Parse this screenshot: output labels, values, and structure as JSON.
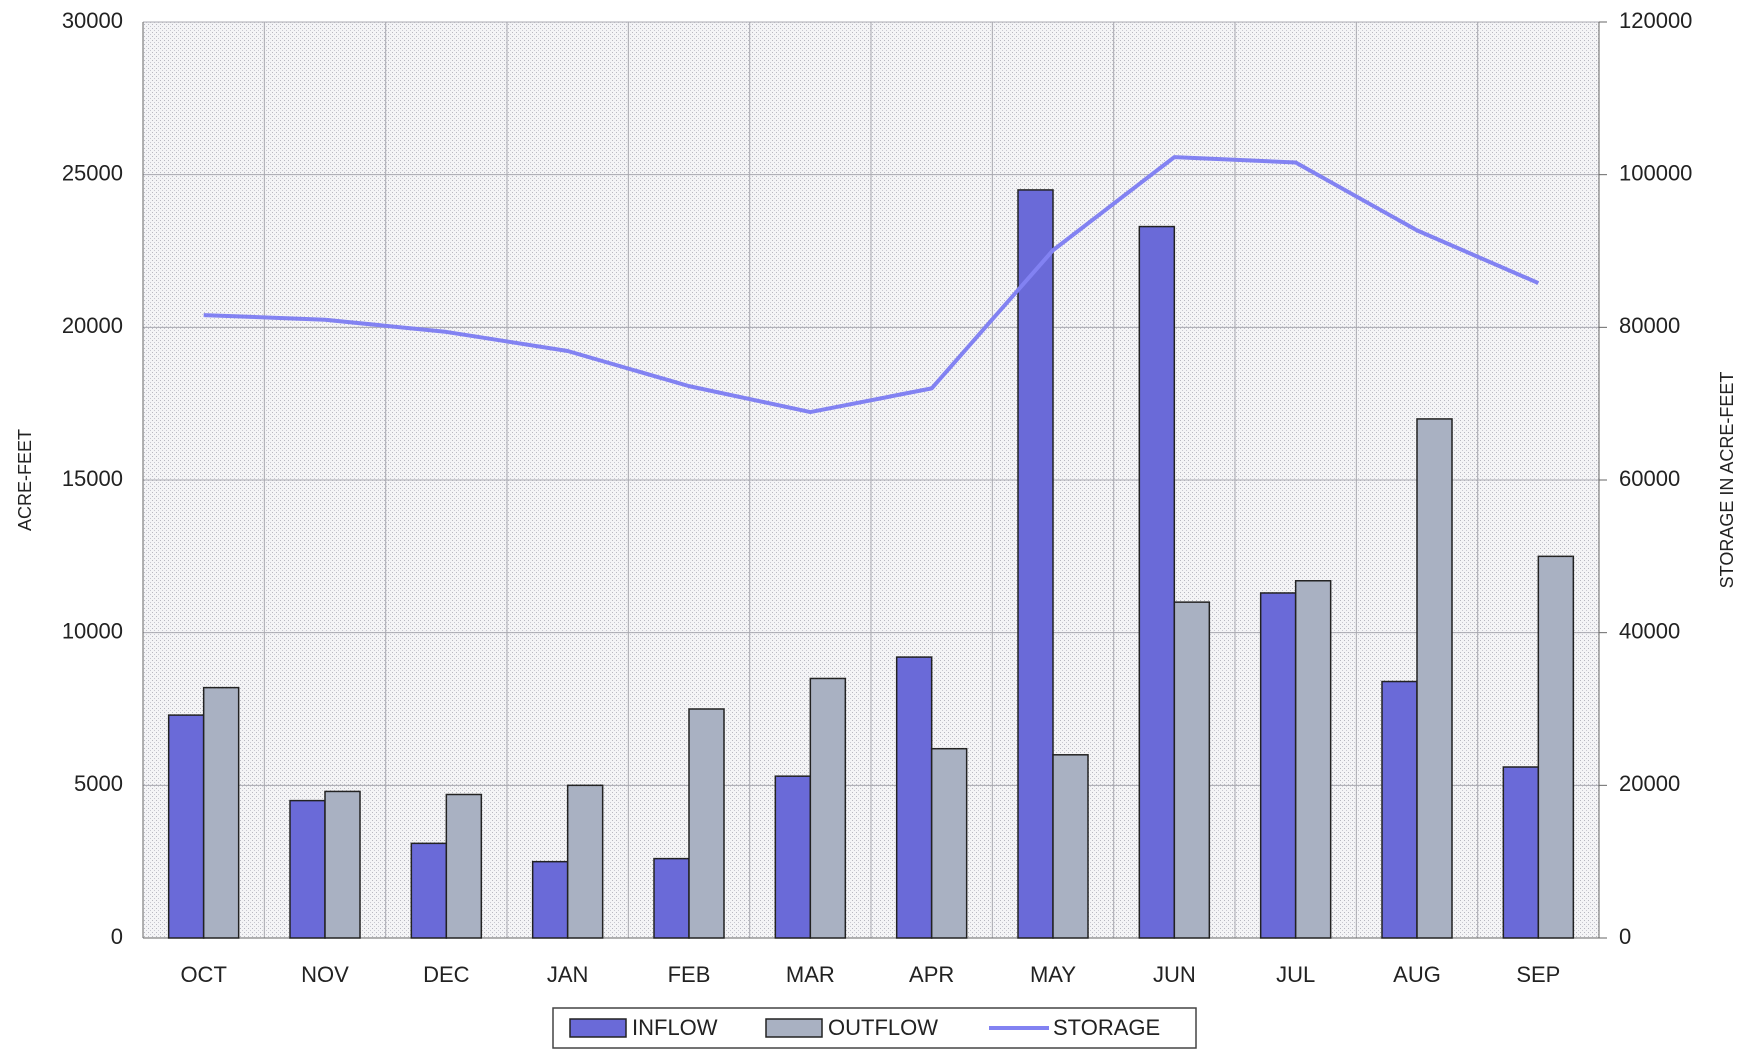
{
  "chart_data": {
    "type": "bar",
    "y_label": "ACRE-FEET",
    "y2_label": "STORAGE IN ACRE-FEET",
    "categories": [
      "OCT",
      "NOV",
      "DEC",
      "JAN",
      "FEB",
      "MAR",
      "APR",
      "MAY",
      "JUN",
      "JUL",
      "AUG",
      "SEP"
    ],
    "series": [
      {
        "name": "INFLOW",
        "type": "bar",
        "color": "#6a6ad8",
        "values": [
          7300,
          4500,
          3100,
          2500,
          2600,
          5300,
          9200,
          24500,
          23300,
          11300,
          8400,
          5600
        ]
      },
      {
        "name": "OUTFLOW",
        "type": "bar",
        "color": "#a9b1c2",
        "values": [
          8200,
          4800,
          4700,
          5000,
          7500,
          8500,
          6200,
          6000,
          11000,
          11700,
          17000,
          12500
        ]
      },
      {
        "name": "STORAGE",
        "type": "line",
        "axis": "y2",
        "color": "#8282f2",
        "values": [
          81600,
          81000,
          79400,
          76900,
          72300,
          68900,
          72000,
          90100,
          102300,
          101600,
          92700,
          85800
        ]
      }
    ],
    "ylim": [
      0,
      30000
    ],
    "yticks": [
      0,
      5000,
      10000,
      15000,
      20000,
      25000,
      30000
    ],
    "y2lim": [
      0,
      120000
    ],
    "y2ticks": [
      0,
      20000,
      40000,
      60000,
      80000,
      100000,
      120000
    ],
    "grid": true,
    "legend": "bottom"
  }
}
